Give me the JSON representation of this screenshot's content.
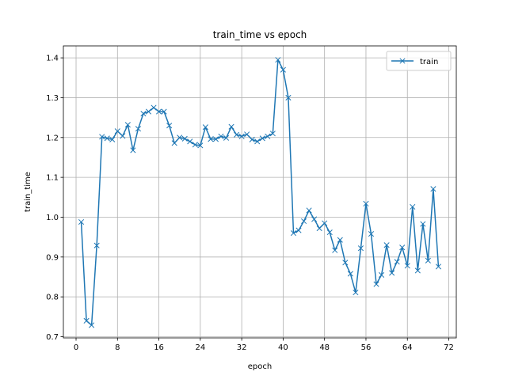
{
  "chart_data": {
    "type": "line",
    "title": "train_time vs epoch",
    "xlabel": "epoch",
    "ylabel": "train_time",
    "xlim": [
      -2.45,
      73.45
    ],
    "ylim": [
      0.697,
      1.43
    ],
    "xticks": [
      0,
      8,
      16,
      24,
      32,
      40,
      48,
      56,
      64,
      72
    ],
    "yticks": [
      0.7,
      0.8,
      0.9,
      1.0,
      1.1,
      1.2,
      1.3,
      1.4
    ],
    "xtick_labels": [
      "0",
      "8",
      "16",
      "24",
      "32",
      "40",
      "48",
      "56",
      "64",
      "72"
    ],
    "ytick_labels": [
      "0.7",
      "0.8",
      "0.9",
      "1.0",
      "1.1",
      "1.2",
      "1.3",
      "1.4"
    ],
    "grid": true,
    "legend_position": "top-right",
    "marker": "x",
    "color": "#1f77b4",
    "series": [
      {
        "name": "train",
        "x": [
          1,
          2,
          3,
          4,
          5,
          6,
          7,
          8,
          9,
          10,
          11,
          12,
          13,
          14,
          15,
          16,
          17,
          18,
          19,
          20,
          21,
          22,
          23,
          24,
          25,
          26,
          27,
          28,
          29,
          30,
          31,
          32,
          33,
          34,
          35,
          36,
          37,
          38,
          39,
          40,
          41,
          42,
          43,
          44,
          45,
          46,
          47,
          48,
          49,
          50,
          51,
          52,
          53,
          54,
          55,
          56,
          57,
          58,
          59,
          60,
          61,
          62,
          63,
          64,
          65,
          66,
          67,
          68,
          69,
          70
        ],
        "values": [
          0.988,
          0.74,
          0.729,
          0.929,
          1.202,
          1.198,
          1.195,
          1.216,
          1.204,
          1.232,
          1.168,
          1.222,
          1.26,
          1.265,
          1.275,
          1.265,
          1.265,
          1.23,
          1.186,
          1.2,
          1.197,
          1.19,
          1.182,
          1.18,
          1.226,
          1.196,
          1.196,
          1.203,
          1.199,
          1.227,
          1.207,
          1.203,
          1.208,
          1.195,
          1.19,
          1.198,
          1.203,
          1.21,
          1.395,
          1.37,
          1.3,
          0.96,
          0.967,
          0.99,
          1.017,
          0.995,
          0.972,
          0.985,
          0.962,
          0.917,
          0.943,
          0.886,
          0.858,
          0.811,
          0.922,
          1.034,
          0.958,
          0.832,
          0.855,
          0.93,
          0.86,
          0.888,
          0.924,
          0.878,
          1.026,
          0.866,
          0.983,
          0.891,
          1.071,
          0.876
        ]
      }
    ]
  }
}
